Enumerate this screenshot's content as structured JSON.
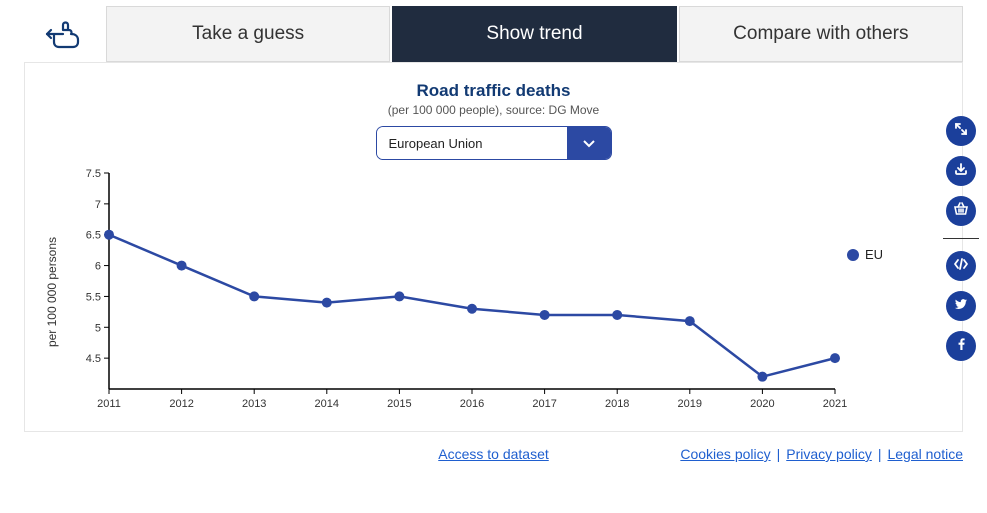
{
  "tabs": {
    "guess": "Take a guess",
    "trend": "Show trend",
    "compare": "Compare with others"
  },
  "chart": {
    "title": "Road traffic deaths",
    "subtitle": "(per 100 000 people), source: DG Move",
    "selector_value": "European Union",
    "yaxis_label": "per 100 000 persons",
    "type": "line",
    "series_label": "EU",
    "series_color": "#2c49a3",
    "marker_radius": 5,
    "line_width": 2.5,
    "axis_color": "#000000",
    "xvalues": [
      "2011",
      "2012",
      "2013",
      "2014",
      "2015",
      "2016",
      "2017",
      "2018",
      "2019",
      "2020",
      "2021"
    ],
    "yvalues": [
      6.5,
      6.0,
      5.5,
      5.4,
      5.5,
      5.3,
      5.2,
      5.2,
      5.1,
      4.2,
      4.5
    ],
    "ylim": [
      4,
      7.5
    ],
    "yticks": [
      4.5,
      5,
      5.5,
      6,
      6.5,
      7,
      7.5
    ]
  },
  "footer": {
    "dataset": "Access to dataset",
    "cookies": "Cookies policy",
    "privacy": "Privacy policy",
    "legal": "Legal notice"
  }
}
